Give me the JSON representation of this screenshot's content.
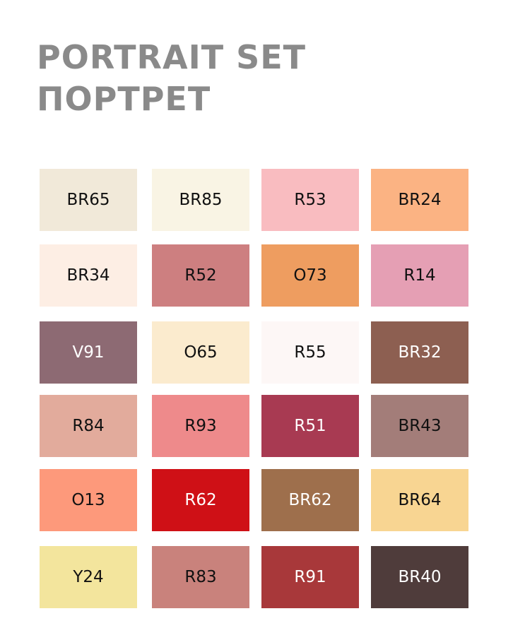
{
  "title_en": "PORTRAIT SET",
  "title_ru": "ПОРТРЕТ",
  "swatches": [
    {
      "code": "BR65",
      "color": "#f1e9d9",
      "text": "#111"
    },
    {
      "code": "BR85",
      "color": "#f9f4e4",
      "text": "#111"
    },
    {
      "code": "R53",
      "color": "#f9bcc0",
      "text": "#111"
    },
    {
      "code": "BR24",
      "color": "#fbb383",
      "text": "#111"
    },
    {
      "code": "BR34",
      "color": "#fdeee4",
      "text": "#111"
    },
    {
      "code": "R52",
      "color": "#cd7f80",
      "text": "#111"
    },
    {
      "code": "O73",
      "color": "#ee9d60",
      "text": "#111"
    },
    {
      "code": "R14",
      "color": "#e59fb4",
      "text": "#111"
    },
    {
      "code": "V91",
      "color": "#8d6a73",
      "text": "#fff"
    },
    {
      "code": "O65",
      "color": "#fbebce",
      "text": "#111"
    },
    {
      "code": "R55",
      "color": "#fdf7f6",
      "text": "#111"
    },
    {
      "code": "BR32",
      "color": "#8d5f51",
      "text": "#fff"
    },
    {
      "code": "R84",
      "color": "#e2ab9c",
      "text": "#111"
    },
    {
      "code": "R93",
      "color": "#ee8a8b",
      "text": "#111"
    },
    {
      "code": "R51",
      "color": "#a83a52",
      "text": "#fff"
    },
    {
      "code": "BR43",
      "color": "#a37d79",
      "text": "#111"
    },
    {
      "code": "O13",
      "color": "#fd997b",
      "text": "#111"
    },
    {
      "code": "R62",
      "color": "#cf1016",
      "text": "#fff"
    },
    {
      "code": "BR62",
      "color": "#9e6f4c",
      "text": "#fff"
    },
    {
      "code": "BR64",
      "color": "#f8d592",
      "text": "#111"
    },
    {
      "code": "Y24",
      "color": "#f3e59d",
      "text": "#111"
    },
    {
      "code": "R83",
      "color": "#c9827c",
      "text": "#111"
    },
    {
      "code": "R91",
      "color": "#a8383a",
      "text": "#fff"
    },
    {
      "code": "BR40",
      "color": "#4f3c3b",
      "text": "#fff"
    }
  ]
}
